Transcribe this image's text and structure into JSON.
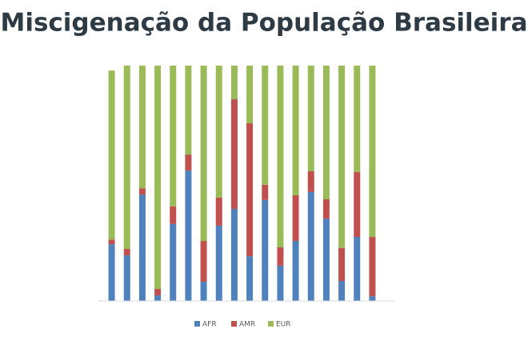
{
  "chart_data": {
    "type": "stacked_bar",
    "title": "Miscigenação da População Brasileira",
    "categories": [
      null,
      null,
      null,
      null,
      null,
      null,
      null,
      null,
      null,
      null,
      null,
      null,
      null,
      null,
      null,
      null,
      null,
      null
    ],
    "series": [
      {
        "name": "AFR",
        "color": "#4f81bd",
        "values": [
          24.1,
          19.4,
          45.2,
          2.4,
          32.7,
          55.4,
          8.2,
          32.0,
          39.1,
          19.0,
          42.9,
          15.0,
          25.5,
          46.3,
          35.0,
          8.5,
          27.2,
          2.0
        ]
      },
      {
        "name": "AMR",
        "color": "#c0504d",
        "values": [
          2.0,
          2.7,
          2.7,
          2.7,
          7.5,
          6.8,
          17.3,
          11.9,
          46.6,
          56.5,
          6.5,
          7.8,
          19.4,
          8.8,
          8.2,
          14.0,
          27.6,
          25.2
        ]
      },
      {
        "name": "EUR",
        "color": "#9bbb59",
        "values": [
          71.8,
          77.9,
          52.1,
          94.9,
          59.8,
          37.8,
          74.5,
          56.1,
          14.3,
          24.5,
          50.6,
          77.2,
          55.1,
          44.9,
          56.8,
          77.5,
          45.2,
          72.8
        ]
      }
    ],
    "ylim": [
      0,
      100
    ],
    "legend": "bottom"
  }
}
